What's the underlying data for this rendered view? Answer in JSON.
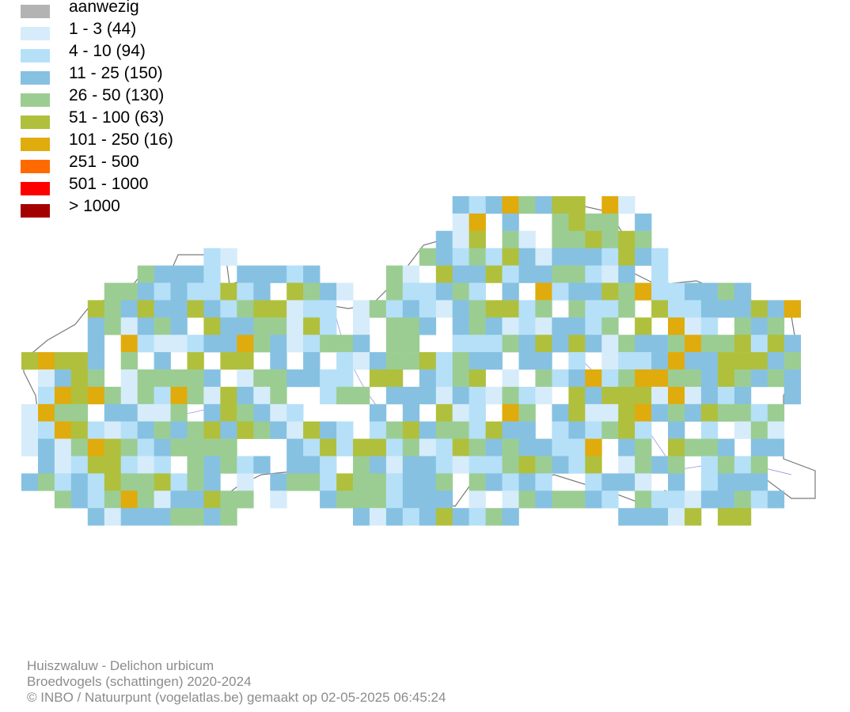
{
  "legend": {
    "items": [
      {
        "label": "aanwezig",
        "color": "#b3b3b3"
      },
      {
        "label": "1 - 3 (44)",
        "color": "#d6ecfa"
      },
      {
        "label": "4 - 10 (94)",
        "color": "#b5e0f8"
      },
      {
        "label": "11 - 25 (150)",
        "color": "#86c1e2"
      },
      {
        "label": "26 - 50 (130)",
        "color": "#9bcd93"
      },
      {
        "label": "51 - 100 (63)",
        "color": "#b0c03c"
      },
      {
        "label": "101 - 250 (16)",
        "color": "#e0ab0c"
      },
      {
        "label": "251 - 500",
        "color": "#ff6a00"
      },
      {
        "label": "501 - 1000",
        "color": "#ff0000"
      },
      {
        "label": "> 1000",
        "color": "#a50000"
      }
    ]
  },
  "credits": {
    "species": "Huiszwaluw - Delichon urbicum",
    "dataset": "Broedvogels (schattingen) 2020-2024",
    "copyright": "© INBO / Natuurpunt (vogelatlas.be) gemaakt op 02-05-2025 06:45:24"
  }
}
